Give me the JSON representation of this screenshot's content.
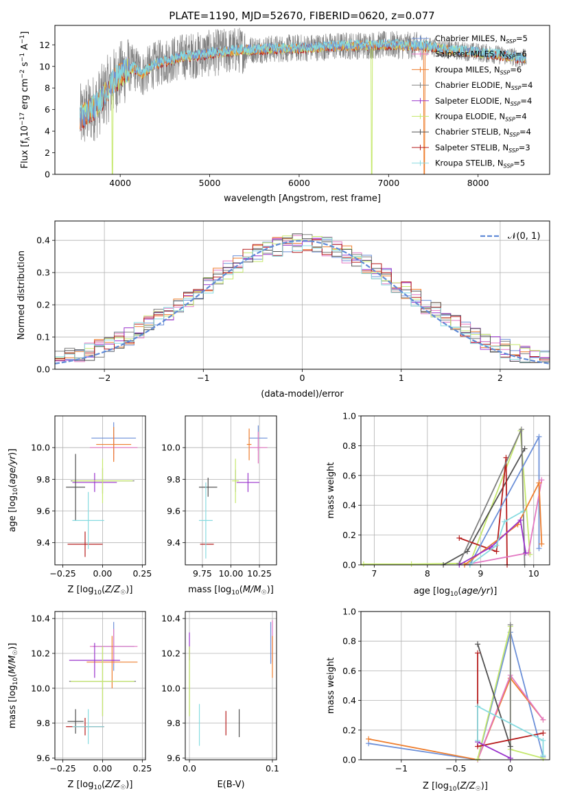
{
  "title": "PLATE=1190, MJD=52670, FIBERID=0620, z=0.077",
  "colors": {
    "chabrier_miles": "#6b8fd8",
    "salpeter_miles": "#e377c2",
    "kroupa_miles": "#ee7d2c",
    "chabrier_elodie": "#7f7f7f",
    "salpeter_elodie": "#9932cc",
    "kroupa_elodie": "#c5e86c",
    "chabrier_stelib": "#505050",
    "salpeter_stelib": "#b51a1a",
    "kroupa_stelib": "#86dbe0",
    "normal_curve": "#5f8ad6"
  },
  "models": [
    {
      "key": "chabrier_miles",
      "label": "Chabrier MILES, N",
      "sub": "SSP",
      "suffix": "=5"
    },
    {
      "key": "salpeter_miles",
      "label": "Salpeter MILES, N",
      "sub": "SSP",
      "suffix": "=6"
    },
    {
      "key": "kroupa_miles",
      "label": "Kroupa MILES, N",
      "sub": "SSP",
      "suffix": "=6"
    },
    {
      "key": "chabrier_elodie",
      "label": "Chabrier ELODIE, N",
      "sub": "SSP",
      "suffix": "=4"
    },
    {
      "key": "salpeter_elodie",
      "label": "Salpeter ELODIE, N",
      "sub": "SSP",
      "suffix": "=4"
    },
    {
      "key": "kroupa_elodie",
      "label": "Kroupa ELODIE, N",
      "sub": "SSP",
      "suffix": "=4"
    },
    {
      "key": "chabrier_stelib",
      "label": "Chabrier STELIB, N",
      "sub": "SSP",
      "suffix": "=4"
    },
    {
      "key": "salpeter_stelib",
      "label": "Salpeter STELIB, N",
      "sub": "SSP",
      "suffix": "=3"
    },
    {
      "key": "kroupa_stelib",
      "label": "Kroupa STELIB, N",
      "sub": "SSP",
      "suffix": "=5"
    }
  ],
  "chart_data": [
    {
      "id": "spectrum",
      "type": "line",
      "title": "PLATE=1190, MJD=52670, FIBERID=0620, z=0.077",
      "xlabel": "wavelength [Angstrom, rest frame]",
      "ylabel": "Flux [f_λ 10^-17 erg cm^-2 s^-1 A^-1]",
      "xlim": [
        3270,
        8800
      ],
      "ylim": [
        0,
        13.8
      ],
      "xticks": [
        4000,
        5000,
        6000,
        7000,
        8000
      ],
      "yticks": [
        0,
        2,
        4,
        6,
        8,
        10,
        12
      ],
      "grid": false,
      "legend": "right",
      "data_range": [
        3550,
        8540
      ],
      "continuum": {
        "x": [
          3550,
          3650,
          3750,
          3850,
          3950,
          4050,
          4150,
          4250,
          4350,
          4500,
          4700,
          4900,
          5100,
          5300,
          5600,
          6000,
          6500,
          7000,
          7300,
          7400,
          7700,
          8000,
          8300,
          8540
        ],
        "y": [
          5.2,
          5.8,
          6.5,
          7.8,
          8.8,
          9.6,
          9.9,
          9.3,
          10.0,
          10.5,
          10.9,
          11.1,
          11.3,
          11.5,
          11.6,
          11.7,
          11.9,
          12.0,
          11.9,
          11.9,
          11.5,
          11.3,
          11.0,
          10.7
        ]
      },
      "dips": [
        {
          "key": "kroupa_elodie",
          "x": 3915,
          "y": 0
        },
        {
          "key": "kroupa_elodie",
          "x": 6810,
          "y": 0
        },
        {
          "key": "kroupa_miles",
          "x": 7400,
          "y": 0
        }
      ]
    },
    {
      "id": "residual-histogram",
      "type": "bar",
      "xlabel": "(data-model)/error",
      "ylabel": "Normed distribution",
      "xlim": [
        -2.5,
        2.5
      ],
      "ylim": [
        0,
        0.46
      ],
      "xticks": [
        -2,
        -1,
        0,
        1,
        2
      ],
      "yticks": [
        0.0,
        0.1,
        0.2,
        0.3,
        0.4
      ],
      "grid": true,
      "legend": "top-right",
      "bin_width": 0.1,
      "curve_label": "𝒩(0, 1)",
      "curve": {
        "mean": 0,
        "sigma": 1
      }
    },
    {
      "id": "age-vs-metallicity",
      "type": "scatter",
      "xlabel": "Z [log10(Z/Z☉)]",
      "ylabel": "age [log10(age/yr)]",
      "xlim": [
        -0.3,
        0.27
      ],
      "ylim": [
        9.26,
        10.2
      ],
      "xticks": [
        -0.25,
        0.0,
        0.25
      ],
      "yticks": [
        9.4,
        9.6,
        9.8,
        10.0
      ],
      "grid": true,
      "points": [
        {
          "key": "chabrier_miles",
          "x": 0.07,
          "y": 10.06,
          "xerr": 0.14,
          "yerr": 0.1
        },
        {
          "key": "salpeter_miles",
          "x": 0.07,
          "y": 10.0,
          "xerr": 0.15,
          "yerr": 0.08
        },
        {
          "key": "kroupa_miles",
          "x": 0.07,
          "y": 10.02,
          "xerr": 0.11,
          "yerr": 0.11
        },
        {
          "key": "chabrier_elodie",
          "x": 0.0,
          "y": 9.79,
          "xerr": 0.2,
          "yerr": 0.08
        },
        {
          "key": "salpeter_elodie",
          "x": -0.05,
          "y": 9.78,
          "xerr": 0.14,
          "yerr": 0.06
        },
        {
          "key": "kroupa_elodie",
          "x": 0.0,
          "y": 9.79,
          "xerr": 0.19,
          "yerr": 0.14
        },
        {
          "key": "chabrier_stelib",
          "x": -0.17,
          "y": 9.75,
          "xerr": 0.06,
          "yerr": 0.21
        },
        {
          "key": "salpeter_stelib",
          "x": -0.11,
          "y": 9.39,
          "xerr": 0.11,
          "yerr": 0.08
        },
        {
          "key": "kroupa_stelib",
          "x": -0.09,
          "y": 9.54,
          "xerr": 0.1,
          "yerr": 0.18
        }
      ]
    },
    {
      "id": "age-vs-mass",
      "type": "scatter",
      "xlabel": "mass [log10(M/M☉)]",
      "ylabel": "",
      "xlim": [
        9.6,
        10.4
      ],
      "ylim": [
        9.26,
        10.2
      ],
      "xticks": [
        9.75,
        10.0,
        10.25
      ],
      "yticks": [
        9.4,
        9.6,
        9.8,
        10.0
      ],
      "grid": true,
      "points": [
        {
          "key": "chabrier_miles",
          "x": 10.24,
          "y": 10.06,
          "xerr": 0.08,
          "yerr": 0.08
        },
        {
          "key": "salpeter_miles",
          "x": 10.24,
          "y": 10.0,
          "xerr": 0.08,
          "yerr": 0.1
        },
        {
          "key": "kroupa_miles",
          "x": 10.16,
          "y": 10.02,
          "xerr": 0.02,
          "yerr": 0.1
        },
        {
          "key": "chabrier_elodie",
          "x": 10.04,
          "y": 9.79,
          "xerr": 0.0,
          "yerr": 0.07
        },
        {
          "key": "salpeter_elodie",
          "x": 10.15,
          "y": 9.78,
          "xerr": 0.1,
          "yerr": 0.06
        },
        {
          "key": "kroupa_elodie",
          "x": 10.04,
          "y": 9.79,
          "xerr": 0.03,
          "yerr": 0.14
        },
        {
          "key": "chabrier_stelib",
          "x": 9.8,
          "y": 9.75,
          "xerr": 0.08,
          "yerr": 0.06
        },
        {
          "key": "salpeter_stelib",
          "x": 9.79,
          "y": 9.39,
          "xerr": 0.06,
          "yerr": 0.0
        },
        {
          "key": "kroupa_stelib",
          "x": 9.78,
          "y": 9.54,
          "xerr": 0.06,
          "yerr": 0.24
        }
      ]
    },
    {
      "id": "mass-weight-vs-age",
      "type": "line",
      "xlabel": "age [log10(age/yr)]",
      "ylabel": "mass weight",
      "xlim": [
        6.75,
        10.3
      ],
      "ylim": [
        0,
        1.0
      ],
      "xticks": [
        7,
        8,
        9,
        10
      ],
      "yticks": [
        0.0,
        0.2,
        0.4,
        0.6,
        0.8,
        1.0
      ],
      "grid": true,
      "series": [
        {
          "key": "kroupa_elodie",
          "x": [
            6.8,
            7.7,
            8.8,
            9.75,
            9.93
          ],
          "y": [
            0.005,
            0.005,
            0.01,
            0.9,
            0.07
          ]
        },
        {
          "key": "chabrier_stelib",
          "x": [
            8.3,
            8.75,
            9.83
          ],
          "y": [
            0.0,
            0.09,
            0.78
          ]
        },
        {
          "key": "salpeter_stelib",
          "x": [
            8.6,
            9.3,
            9.48,
            9.5
          ],
          "y": [
            0.18,
            0.09,
            0.72,
            0.0
          ]
        },
        {
          "key": "chabrier_elodie",
          "x": [
            8.6,
            9.77,
            9.83
          ],
          "y": [
            0.01,
            0.91,
            0.0
          ]
        },
        {
          "key": "chabrier_miles",
          "x": [
            8.8,
            10.1,
            10.1
          ],
          "y": [
            0.0,
            0.86,
            0.11
          ]
        },
        {
          "key": "salpeter_miles",
          "x": [
            8.7,
            9.9,
            10.15
          ],
          "y": [
            0.0,
            0.08,
            0.57
          ]
        },
        {
          "key": "kroupa_miles",
          "x": [
            8.7,
            9.7,
            10.1,
            10.15
          ],
          "y": [
            0.0,
            0.27,
            0.55,
            0.14
          ]
        },
        {
          "key": "salpeter_elodie",
          "x": [
            8.6,
            9.2,
            9.75,
            9.85
          ],
          "y": [
            0.0,
            0.12,
            0.3,
            0.08
          ]
        },
        {
          "key": "kroupa_stelib",
          "x": [
            8.8,
            9.3,
            9.45,
            9.8
          ],
          "y": [
            0.0,
            0.13,
            0.29,
            0.36
          ]
        }
      ]
    },
    {
      "id": "mass-vs-metallicity",
      "type": "scatter",
      "xlabel": "Z [log10(Z/Z☉)]",
      "ylabel": "mass [log10(M/M☉)]",
      "xlim": [
        -0.3,
        0.27
      ],
      "ylim": [
        9.59,
        10.44
      ],
      "xticks": [
        -0.25,
        0.0,
        0.25
      ],
      "yticks": [
        9.6,
        9.8,
        10.0,
        10.2,
        10.4
      ],
      "grid": true,
      "points": [
        {
          "key": "chabrier_miles",
          "x": 0.07,
          "y": 10.24,
          "xerr": 0.13,
          "yerr": 0.14
        },
        {
          "key": "salpeter_miles",
          "x": 0.07,
          "y": 10.24,
          "xerr": 0.15,
          "yerr": 0.1
        },
        {
          "key": "kroupa_miles",
          "x": 0.06,
          "y": 10.15,
          "xerr": 0.16,
          "yerr": 0.15
        },
        {
          "key": "chabrier_elodie",
          "x": 0.0,
          "y": 10.04,
          "xerr": 0.21,
          "yerr": 0.2
        },
        {
          "key": "salpeter_elodie",
          "x": -0.05,
          "y": 10.16,
          "xerr": 0.16,
          "yerr": 0.1
        },
        {
          "key": "kroupa_elodie",
          "x": 0.0,
          "y": 10.04,
          "xerr": 0.2,
          "yerr": 0.2
        },
        {
          "key": "chabrier_stelib",
          "x": -0.17,
          "y": 9.81,
          "xerr": 0.05,
          "yerr": 0.07
        },
        {
          "key": "salpeter_stelib",
          "x": -0.11,
          "y": 9.78,
          "xerr": 0.12,
          "yerr": 0.05
        },
        {
          "key": "kroupa_stelib",
          "x": -0.09,
          "y": 9.78,
          "xerr": 0.1,
          "yerr": 0.1
        }
      ]
    },
    {
      "id": "mass-vs-ebv",
      "type": "scatter",
      "xlabel": "E(B-V)",
      "ylabel": "",
      "xlim": [
        -0.005,
        0.105
      ],
      "ylim": [
        9.59,
        10.44
      ],
      "xticks": [
        0.0,
        0.1
      ],
      "yticks": [
        9.6,
        9.8,
        10.0,
        10.2,
        10.4
      ],
      "grid": true,
      "points": [
        {
          "key": "chabrier_miles",
          "x": 0.098,
          "y": 10.26,
          "xerr": 0.0,
          "yerr": 0.12
        },
        {
          "key": "salpeter_miles",
          "x": 0.1,
          "y": 10.27,
          "xerr": 0.0,
          "yerr": 0.12
        },
        {
          "key": "kroupa_miles",
          "x": 0.1,
          "y": 10.18,
          "xerr": 0.0,
          "yerr": 0.12
        },
        {
          "key": "chabrier_elodie",
          "x": 0.0,
          "y": 10.04,
          "xerr": 0.0,
          "yerr": 0.2
        },
        {
          "key": "salpeter_elodie",
          "x": 0.0,
          "y": 10.24,
          "xerr": 0.0,
          "yerr": 0.08
        },
        {
          "key": "kroupa_elodie",
          "x": 0.0,
          "y": 10.04,
          "xerr": 0.0,
          "yerr": 0.2
        },
        {
          "key": "chabrier_stelib",
          "x": 0.06,
          "y": 9.8,
          "xerr": 0.0,
          "yerr": 0.08
        },
        {
          "key": "salpeter_stelib",
          "x": 0.044,
          "y": 9.8,
          "xerr": 0.0,
          "yerr": 0.07
        },
        {
          "key": "kroupa_stelib",
          "x": 0.012,
          "y": 9.79,
          "xerr": 0.0,
          "yerr": 0.12
        }
      ]
    },
    {
      "id": "mass-weight-vs-metallicity",
      "type": "line",
      "xlabel": "Z [log10(Z/Z☉)]",
      "ylabel": "mass weight",
      "xlim": [
        -1.37,
        0.36
      ],
      "ylim": [
        0,
        1.0
      ],
      "xticks": [
        -1.0,
        -0.5,
        0.0
      ],
      "yticks": [
        0.0,
        0.2,
        0.4,
        0.6,
        0.8,
        1.0
      ],
      "grid": true,
      "series": [
        {
          "key": "chabrier_miles",
          "x": [
            -1.3,
            -0.3,
            0.0,
            0.3
          ],
          "y": [
            0.11,
            0.0,
            0.86,
            0.02
          ]
        },
        {
          "key": "kroupa_miles",
          "x": [
            -1.3,
            -0.3,
            0.0,
            0.3
          ],
          "y": [
            0.14,
            0.0,
            0.55,
            0.27
          ]
        },
        {
          "key": "salpeter_miles",
          "x": [
            -0.3,
            0.0,
            0.3
          ],
          "y": [
            0.0,
            0.57,
            0.27
          ]
        },
        {
          "key": "kroupa_elodie",
          "x": [
            -0.3,
            0.0,
            0.0,
            0.3
          ],
          "y": [
            0.005,
            0.9,
            0.07,
            0.01
          ]
        },
        {
          "key": "chabrier_elodie",
          "x": [
            0.0,
            0.0
          ],
          "y": [
            0.91,
            0.01
          ]
        },
        {
          "key": "chabrier_stelib",
          "x": [
            -0.3,
            0.0
          ],
          "y": [
            0.78,
            0.09
          ]
        },
        {
          "key": "salpeter_stelib",
          "x": [
            -0.3,
            -0.3,
            0.3
          ],
          "y": [
            0.72,
            0.09,
            0.18
          ]
        },
        {
          "key": "salpeter_elodie",
          "x": [
            -0.3,
            0.0
          ],
          "y": [
            0.12,
            0.01
          ]
        },
        {
          "key": "kroupa_stelib",
          "x": [
            -0.3,
            -0.3,
            0.3,
            0.3
          ],
          "y": [
            0.13,
            0.36,
            0.13,
            0.03
          ]
        }
      ]
    }
  ]
}
